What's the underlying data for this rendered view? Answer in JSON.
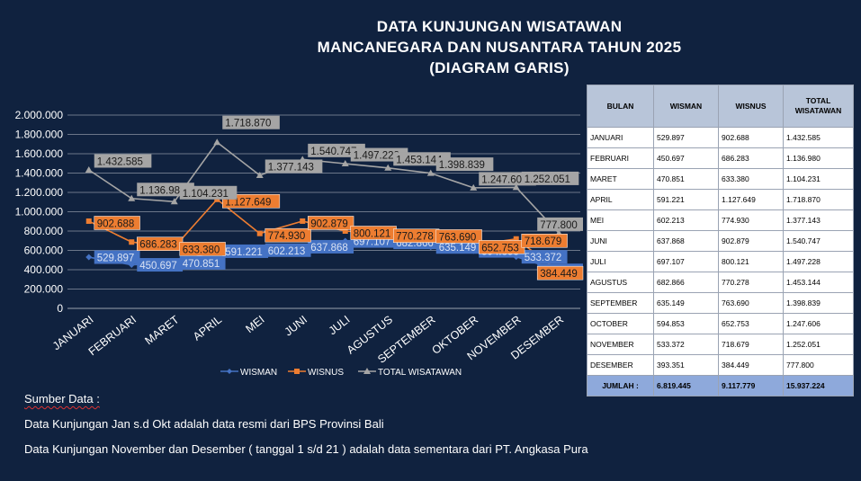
{
  "title": {
    "line1": "DATA KUNJUNGAN WISATAWAN",
    "line2": "MANCANEGARA DAN NUSANTARA TAHUN 2025",
    "line3": "(DIAGRAM GARIS)"
  },
  "chart_data": {
    "type": "line",
    "categories": [
      "JANUARI",
      "FEBRUARI",
      "MARET",
      "APRIL",
      "MEI",
      "JUNI",
      "JULI",
      "AGUSTUS",
      "SEPTEMBER",
      "OKTOBER",
      "NOVEMBER",
      "DESEMBER"
    ],
    "series": [
      {
        "name": "WISMAN",
        "color": "#4472c4",
        "values": [
          529897,
          450697,
          470851,
          591221,
          602213,
          637868,
          697107,
          682866,
          635149,
          594853,
          533372,
          393351
        ]
      },
      {
        "name": "WISNUS",
        "color": "#ed7d31",
        "values": [
          902688,
          686283,
          633380,
          1127649,
          774930,
          902879,
          800121,
          770278,
          763690,
          652753,
          718679,
          384449
        ]
      },
      {
        "name": "TOTAL WISATAWAN",
        "color": "#a5a5a5",
        "values": [
          1432585,
          1136980,
          1104231,
          1718870,
          1377143,
          1540747,
          1497228,
          1453144,
          1398839,
          1247606,
          1252051,
          777800
        ]
      }
    ],
    "ylim": [
      0,
      2000000
    ],
    "yticks": [
      "0",
      "200.000",
      "400.000",
      "600.000",
      "800.000",
      "1.000.000",
      "1.200.000",
      "1.400.000",
      "1.600.000",
      "1.800.000",
      "2.000.000"
    ],
    "data_labels": [
      [
        "529.897",
        "450.697",
        "470.851",
        "591.221",
        "602.213",
        "637.868",
        "697.107",
        "682.866",
        "635.149",
        "594.853",
        "533.372",
        "393.351"
      ],
      [
        "902.688",
        "686.283",
        "633.380",
        "1.127.649",
        "774.930",
        "902.879",
        "800.121",
        "770.278",
        "763.690",
        "652.753",
        "718.679",
        "384.449"
      ],
      [
        "1.432.585",
        "1.136.980",
        "1.104.231",
        "1.718.870",
        "1.377.143",
        "1.540.747",
        "1.497.228",
        "1.453.144",
        "1.398.839",
        "1.247.606",
        "1.252.051",
        "777.800"
      ]
    ],
    "legend_position": "bottom",
    "grid": true
  },
  "source": {
    "heading": "Sumber Data :",
    "line1": "Data Kunjungan Jan s.d Okt adalah data resmi dari BPS Provinsi Bali",
    "line2": "Data Kunjungan November dan Desember ( tanggal 1 s/d 21 ) adalah data sementara dari PT. Angkasa Pura"
  },
  "table": {
    "headers": [
      "BULAN",
      "WISMAN",
      "WISNUS",
      "TOTAL WISATAWAN"
    ],
    "rows": [
      [
        "JANUARI",
        "529.897",
        "902.688",
        "1.432.585"
      ],
      [
        "FEBRUARI",
        "450.697",
        "686.283",
        "1.136.980"
      ],
      [
        "MARET",
        "470.851",
        "633.380",
        "1.104.231"
      ],
      [
        "APRIL",
        "591.221",
        "1.127.649",
        "1.718.870"
      ],
      [
        "MEI",
        "602.213",
        "774.930",
        "1.377.143"
      ],
      [
        "JUNI",
        "637.868",
        "902.879",
        "1.540.747"
      ],
      [
        "JULI",
        "697.107",
        "800.121",
        "1.497.228"
      ],
      [
        "AGUSTUS",
        "682.866",
        "770.278",
        "1.453.144"
      ],
      [
        "SEPTEMBER",
        "635.149",
        "763.690",
        "1.398.839"
      ],
      [
        "OCTOBER",
        "594.853",
        "652.753",
        "1.247.606"
      ],
      [
        "NOVEMBER",
        "533.372",
        "718.679",
        "1.252.051"
      ],
      [
        "DESEMBER",
        "393.351",
        "384.449",
        "777.800"
      ]
    ],
    "total": [
      "JUMLAH :",
      "6.819.445",
      "9.117.779",
      "15.937.224"
    ]
  }
}
